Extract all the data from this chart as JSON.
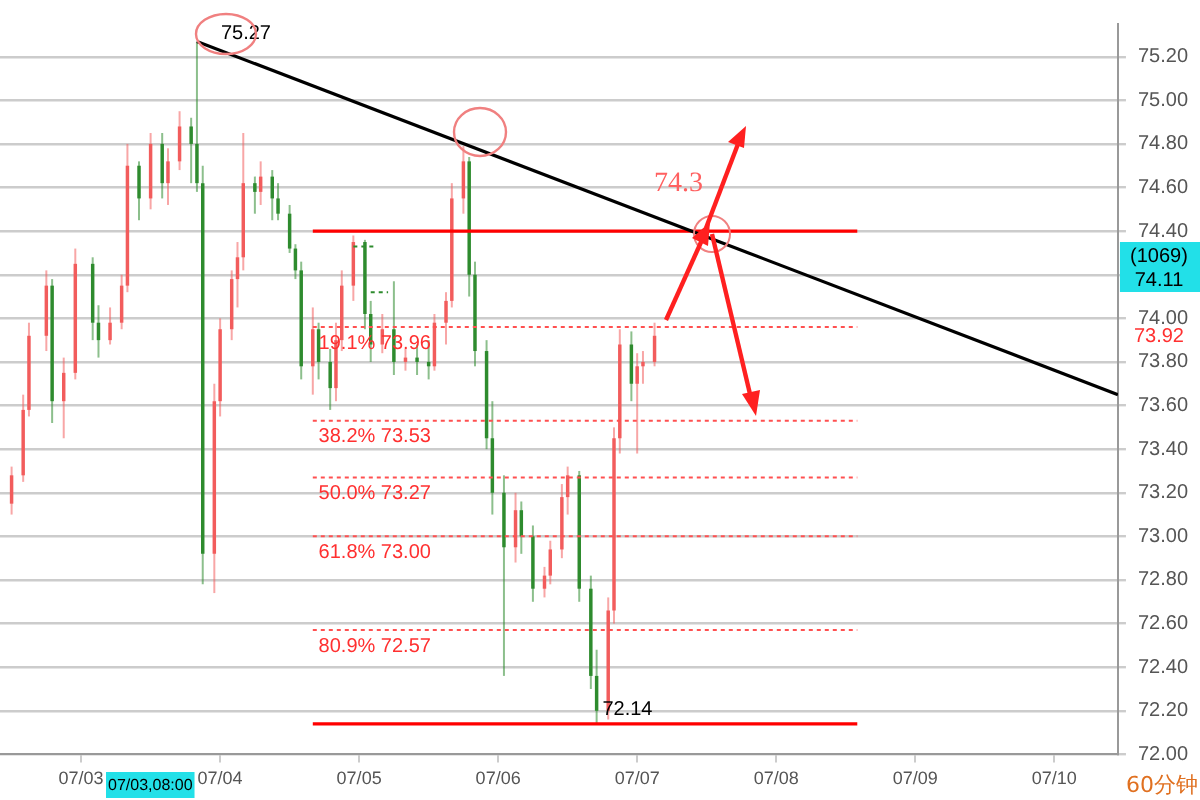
{
  "chart_data": {
    "type": "candlestick",
    "x": [
      "--07-02T12:00",
      "--07-02T14:00",
      "--07-02T15:00",
      "--07-02T18:00",
      "--07-02T19:00",
      "--07-02T21:00",
      "--07-02T23:00",
      "--07-03T02:00",
      "--07-03T03:00",
      "--07-03T05:00",
      "--07-03T07:00",
      "--07-03T08:00",
      "--07-03T10:00",
      "--07-03T12:00",
      "--07-03T14:00",
      "--07-03T15:00",
      "--07-03T17:00",
      "--07-03T19:00",
      "--07-03T20:00",
      "--07-03T21:00",
      "--07-03T23:00",
      "--07-04T00:00",
      "--07-04T02:00",
      "--07-04T03:00",
      "--07-04T04:00",
      "--07-04T06:00",
      "--07-04T07:00",
      "--07-04T09:00",
      "--07-04T10:00",
      "--07-04T12:00",
      "--07-04T13:00",
      "--07-04T14:00",
      "--07-04T16:00",
      "--07-04T17:00",
      "--07-04T19:00",
      "--07-04T20:00",
      "--07-04T21:00",
      "--07-04T23:00",
      "--07-05T01:00",
      "--07-05T02:00",
      "--07-05T04:00",
      "--07-05T06:00",
      "--07-05T08:00",
      "--07-05T10:00",
      "--07-05T12:00",
      "--07-05T13:00",
      "--07-05T15:00",
      "--07-05T16:00",
      "--07-05T18:00",
      "--07-05T19:00",
      "--07-05T20:00",
      "--07-05T22:00",
      "--07-05T23:00",
      "--07-06T01:00",
      "--07-06T03:00",
      "--07-06T04:00",
      "--07-06T06:00",
      "--07-06T08:00",
      "--07-06T09:00",
      "--07-06T11:00",
      "--07-06T12:00",
      "--07-06T14:00",
      "--07-06T16:00",
      "--07-06T17:00",
      "--07-06T19:00",
      "--07-06T20:00",
      "--07-06T21:00",
      "--07-06T23:00",
      "--07-07T00:00",
      "--07-07T01:00",
      "--07-07T03:00"
    ],
    "ohlc": [
      [
        73.15,
        73.32,
        73.1,
        73.28
      ],
      [
        73.28,
        73.65,
        73.25,
        73.58
      ],
      [
        73.58,
        73.98,
        73.55,
        73.92
      ],
      [
        73.92,
        74.22,
        73.85,
        74.15
      ],
      [
        74.15,
        74.18,
        73.52,
        73.62
      ],
      [
        73.62,
        73.82,
        73.45,
        73.75
      ],
      [
        73.75,
        74.32,
        73.72,
        74.25
      ],
      [
        74.25,
        74.28,
        73.9,
        73.98
      ],
      [
        73.98,
        74.06,
        73.82,
        73.9
      ],
      [
        73.9,
        74.05,
        73.88,
        73.98
      ],
      [
        73.98,
        74.2,
        73.95,
        74.15
      ],
      [
        74.15,
        74.8,
        74.12,
        74.7
      ],
      [
        74.7,
        74.72,
        74.45,
        74.55
      ],
      [
        74.55,
        74.85,
        74.5,
        74.8
      ],
      [
        74.8,
        74.85,
        74.55,
        74.62
      ],
      [
        74.62,
        74.78,
        74.52,
        74.72
      ],
      [
        74.72,
        74.95,
        74.68,
        74.88
      ],
      [
        74.88,
        74.92,
        74.62,
        74.8
      ],
      [
        74.8,
        75.27,
        74.58,
        74.62
      ],
      [
        74.62,
        74.7,
        72.78,
        72.92
      ],
      [
        72.92,
        73.7,
        72.74,
        73.62
      ],
      [
        73.62,
        74.0,
        73.55,
        73.95
      ],
      [
        73.95,
        74.22,
        73.9,
        74.18
      ],
      [
        74.18,
        74.35,
        74.05,
        74.28
      ],
      [
        74.28,
        74.85,
        74.22,
        74.62
      ],
      [
        74.62,
        74.65,
        74.48,
        74.58
      ],
      [
        74.58,
        74.72,
        74.52,
        74.65
      ],
      [
        74.65,
        74.68,
        74.45,
        74.55
      ],
      [
        74.55,
        74.62,
        74.45,
        74.48
      ],
      [
        74.48,
        74.52,
        74.3,
        74.32
      ],
      [
        74.32,
        74.34,
        74.18,
        74.22
      ],
      [
        74.22,
        74.26,
        73.72,
        73.78
      ],
      [
        73.78,
        74.05,
        73.65,
        73.95
      ],
      [
        73.95,
        73.98,
        73.72,
        73.8
      ],
      [
        73.8,
        73.86,
        73.58,
        73.68
      ],
      [
        73.68,
        73.98,
        73.62,
        73.9
      ],
      [
        73.9,
        74.22,
        73.85,
        74.15
      ],
      [
        74.15,
        74.38,
        74.08,
        74.35
      ],
      [
        74.35,
        74.36,
        73.95,
        74.02
      ],
      [
        74.02,
        74.08,
        73.8,
        73.88
      ],
      [
        73.88,
        74.02,
        73.84,
        73.95
      ],
      [
        73.95,
        74.17,
        73.74,
        73.8
      ],
      [
        73.8,
        73.86,
        73.76,
        73.82
      ],
      [
        73.82,
        73.88,
        73.74,
        73.8
      ],
      [
        73.8,
        73.9,
        73.72,
        73.78
      ],
      [
        73.78,
        74.02,
        73.76,
        73.98
      ],
      [
        73.98,
        74.12,
        73.88,
        74.08
      ],
      [
        74.08,
        74.62,
        74.05,
        74.55
      ],
      [
        74.55,
        74.79,
        74.48,
        74.72
      ],
      [
        74.72,
        74.74,
        74.1,
        74.2
      ],
      [
        74.2,
        74.26,
        73.78,
        73.85
      ],
      [
        73.85,
        73.9,
        73.4,
        73.45
      ],
      [
        73.45,
        73.62,
        73.1,
        73.2
      ],
      [
        73.2,
        73.28,
        72.36,
        72.95
      ],
      [
        72.95,
        73.2,
        72.88,
        73.12
      ],
      [
        73.12,
        73.16,
        72.92,
        73.0
      ],
      [
        73.0,
        73.05,
        72.7,
        72.76
      ],
      [
        72.76,
        72.86,
        72.72,
        72.82
      ],
      [
        72.82,
        72.98,
        72.78,
        72.94
      ],
      [
        72.94,
        73.24,
        72.9,
        73.18
      ],
      [
        73.18,
        73.32,
        73.1,
        73.28
      ],
      [
        73.28,
        73.3,
        72.7,
        72.76
      ],
      [
        72.76,
        72.82,
        72.3,
        72.36
      ],
      [
        72.36,
        72.48,
        72.14,
        72.2
      ],
      [
        72.2,
        72.72,
        72.16,
        72.66
      ],
      [
        72.66,
        73.5,
        72.6,
        73.45
      ],
      [
        73.45,
        73.95,
        73.38,
        73.88
      ],
      [
        73.88,
        73.94,
        73.62,
        73.7
      ],
      [
        73.7,
        73.84,
        73.38,
        73.78
      ],
      [
        73.78,
        73.85,
        73.7,
        73.8
      ],
      [
        73.8,
        73.98,
        73.78,
        73.92
      ]
    ],
    "colors": [
      "#f25c5c",
      "#f25c5c",
      "#f25c5c",
      "#f25c5c",
      "#2e8b2e",
      "#f25c5c",
      "#f25c5c",
      "#2e8b2e",
      "#2e8b2e",
      "#f25c5c",
      "#f25c5c",
      "#f25c5c",
      "#2e8b2e",
      "#f25c5c",
      "#2e8b2e",
      "#f25c5c",
      "#f25c5c",
      "#2e8b2e",
      "#2e8b2e",
      "#2e8b2e",
      "#f25c5c",
      "#f25c5c",
      "#f25c5c",
      "#f25c5c",
      "#f25c5c",
      "#2e8b2e",
      "#f25c5c",
      "#2e8b2e",
      "#2e8b2e",
      "#2e8b2e",
      "#2e8b2e",
      "#2e8b2e",
      "#f25c5c",
      "#2e8b2e",
      "#2e8b2e",
      "#f25c5c",
      "#f25c5c",
      "#f25c5c",
      "#2e8b2e",
      "#2e8b2e",
      "#f25c5c",
      "#2e8b2e",
      "#f25c5c",
      "#2e8b2e",
      "#2e8b2e",
      "#f25c5c",
      "#f25c5c",
      "#f25c5c",
      "#f25c5c",
      "#2e8b2e",
      "#2e8b2e",
      "#2e8b2e",
      "#2e8b2e",
      "#2e8b2e",
      "#f25c5c",
      "#2e8b2e",
      "#2e8b2e",
      "#f25c5c",
      "#f25c5c",
      "#f25c5c",
      "#f25c5c",
      "#2e8b2e",
      "#2e8b2e",
      "#2e8b2e",
      "#f25c5c",
      "#f25c5c",
      "#f25c5c",
      "#2e8b2e",
      "#f25c5c",
      "#f25c5c",
      "#f25c5c"
    ],
    "series": [
      {
        "type": "line",
        "color": "#000000",
        "x": [
          "--07-03T20:00",
          "--07-10T11:00"
        ],
        "values": [
          75.27,
          73.65
        ]
      },
      {
        "type": "line",
        "color": "#ff0000",
        "x": [
          "--07-04T16:00",
          "--07-08T14:00"
        ],
        "values": [
          74.4,
          74.4
        ]
      },
      {
        "type": "line",
        "color": "#ff0000",
        "x": [
          "--07-04T16:00",
          "--07-08T14:00"
        ],
        "values": [
          72.14,
          72.14
        ]
      },
      {
        "type": "line",
        "color": "#ff5050",
        "line_style": "dotted",
        "x": [
          "--07-04T16:00",
          "--07-08T14:00"
        ],
        "values": [
          73.96,
          73.96
        ]
      },
      {
        "type": "line",
        "color": "#ff5050",
        "line_style": "dotted",
        "x": [
          "--07-04T16:00",
          "--07-08T14:00"
        ],
        "values": [
          73.53,
          73.53
        ]
      },
      {
        "type": "line",
        "color": "#ff5050",
        "line_style": "dotted",
        "x": [
          "--07-04T16:00",
          "--07-08T14:00"
        ],
        "values": [
          73.27,
          73.27
        ]
      },
      {
        "type": "line",
        "color": "#ff5050",
        "line_style": "dotted",
        "x": [
          "--07-04T16:00",
          "--07-08T14:00"
        ],
        "values": [
          73.0,
          73.0
        ]
      },
      {
        "type": "line",
        "color": "#ff5050",
        "line_style": "dotted",
        "x": [
          "--07-04T16:00",
          "--07-08T14:00"
        ],
        "values": [
          72.57,
          72.57
        ]
      },
      {
        "type": "line",
        "color": "#2e8b2e",
        "line_style": "dotted",
        "x": [
          "--07-04T23:00",
          "--07-05T03:00"
        ],
        "values": [
          74.33,
          74.33
        ]
      },
      {
        "type": "line",
        "color": "#2e8b2e",
        "line_style": "dotted",
        "x": [
          "--07-05T02:00",
          "--07-05T05:00"
        ],
        "values": [
          74.12,
          74.12
        ]
      }
    ],
    "annotations": [
      {
        "text": "75.27",
        "x": "--07-03T20:00",
        "y": 75.27
      },
      {
        "text": "72.14",
        "x": "--07-06T18:00",
        "y": 72.14
      },
      {
        "text": "19.1% 73.96",
        "x": "--07-04T17:00",
        "y": 73.96
      },
      {
        "text": "38.2% 73.53",
        "x": "--07-04T17:00",
        "y": 73.53
      },
      {
        "text": "50.0% 73.27",
        "x": "--07-04T17:00",
        "y": 73.27
      },
      {
        "text": "61.8% 73.00",
        "x": "--07-04T17:00",
        "y": 73.0
      },
      {
        "text": "80.9% 72.57",
        "x": "--07-04T17:00",
        "y": 72.57
      },
      "74.3",
      "07/03,08:00",
      "(1069)",
      "74.11",
      "73.92",
      "60分钟"
    ],
    "xlim": [
      "--07-02T10:00",
      "--07-10T11:00"
    ],
    "xticks": [
      {
        "value": "--07-03",
        "label": "07/03"
      },
      {
        "value": "--07-04",
        "label": "07/04"
      },
      {
        "value": "--07-05",
        "label": "07/05"
      },
      {
        "value": "--07-06",
        "label": "07/06"
      },
      {
        "value": "--07-07",
        "label": "07/07"
      },
      {
        "value": "--07-08",
        "label": "07/08"
      },
      {
        "value": "--07-09",
        "label": "07/09"
      },
      {
        "value": "--07-10",
        "label": "07/10"
      }
    ],
    "ylim": [
      72.0,
      75.35
    ],
    "yticks": [
      {
        "value": 72.0,
        "label": "72.00"
      },
      {
        "value": 72.2,
        "label": "72.20"
      },
      {
        "value": 72.4,
        "label": "72.40"
      },
      {
        "value": 72.6,
        "label": "72.60"
      },
      {
        "value": 72.8,
        "label": "72.80"
      },
      {
        "value": 73.0,
        "label": "73.00"
      },
      {
        "value": 73.2,
        "label": "73.20"
      },
      {
        "value": 73.4,
        "label": "73.40"
      },
      {
        "value": 73.6,
        "label": "73.60"
      },
      {
        "value": 73.8,
        "label": "73.80"
      },
      {
        "value": 74.0,
        "label": "74.00"
      },
      {
        "value": 74.2,
        "label": null
      },
      {
        "value": 74.4,
        "label": "74.40"
      },
      {
        "value": 74.6,
        "label": "74.60"
      },
      {
        "value": 74.8,
        "label": "74.80"
      },
      {
        "value": 75.0,
        "label": "75.00"
      },
      {
        "value": 75.2,
        "label": "75.20"
      }
    ],
    "grid": "y"
  }
}
